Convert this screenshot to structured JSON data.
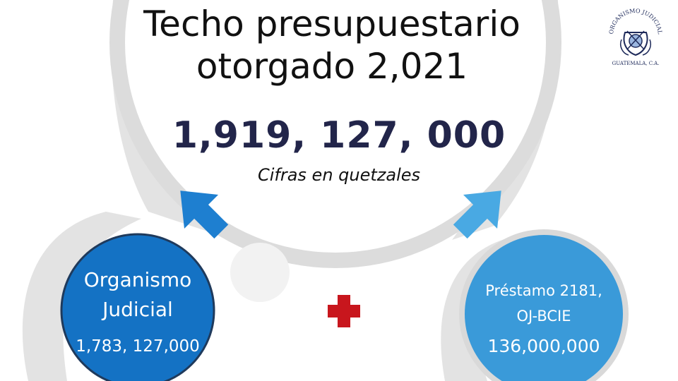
{
  "header": {
    "title_line1": "Techo presupuestario",
    "title_line2": "otorgado 2,021",
    "total": "1,919, 127, 000",
    "units": "Cifras en quetzales"
  },
  "nodes": {
    "organismo": {
      "name_line1": "Organismo",
      "name_line2": "Judicial",
      "value": "1,783, 127,000"
    },
    "prestamo": {
      "name_line1": "Préstamo 2181,",
      "name_line2": "OJ-BCIE",
      "value": "136,000,000"
    }
  },
  "logo": {
    "top_text": "ORGANISMO JUDICIAL",
    "bottom_text": "GUATEMALA, C.A."
  },
  "colors": {
    "ring": "#dcdcdc",
    "organismo_fill": "#1472c4",
    "organismo_stroke": "#1f3a5c",
    "prestamo_fill": "#3a9ad9",
    "arrow_left": "#1e7fd0",
    "arrow_right": "#49a9e3",
    "plus": "#c8161d",
    "small_circle": "#f2f2f2"
  }
}
